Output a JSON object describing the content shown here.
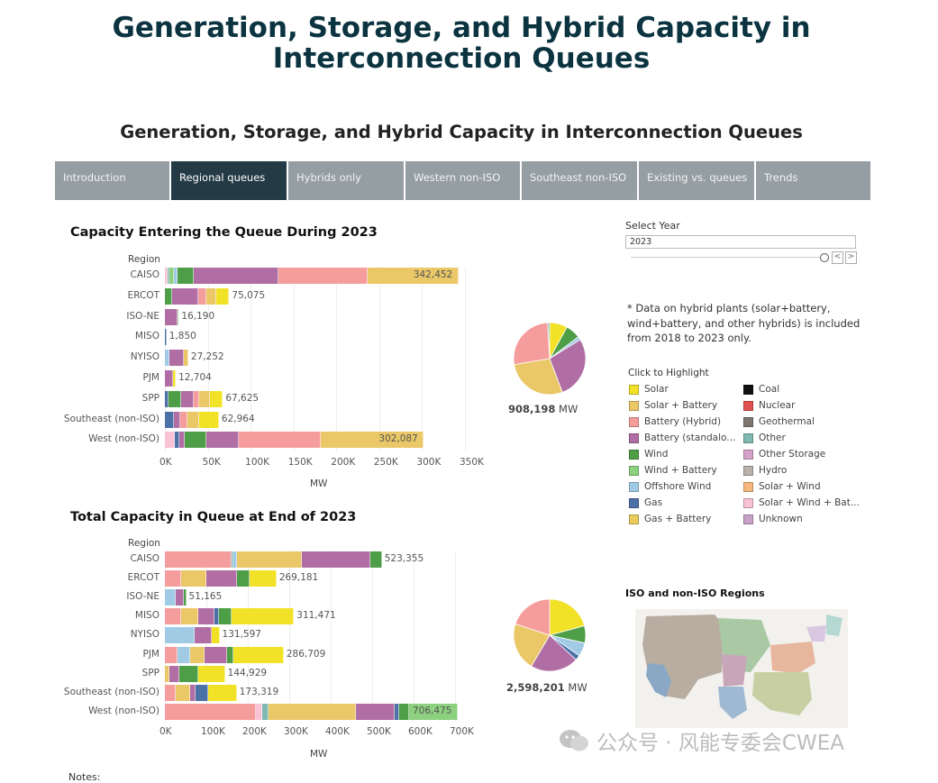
{
  "page": {
    "main_title_line1": "Generation, Storage, and Hybrid Capacity in",
    "main_title_line2": "Interconnection Queues",
    "subtitle": "Generation, Storage, and Hybrid Capacity in Interconnection Queues",
    "notes_label": "Notes:"
  },
  "tabs": [
    {
      "label": "Introduction",
      "active": false
    },
    {
      "label": "Regional queues",
      "active": true
    },
    {
      "label": "Hybrids only",
      "active": false
    },
    {
      "label": "Western non-ISO",
      "active": false
    },
    {
      "label": "Southeast non-ISO",
      "active": false
    },
    {
      "label": "Existing vs. queues",
      "active": false
    },
    {
      "label": "Trends",
      "active": false
    }
  ],
  "controls": {
    "select_year_label": "Select Year",
    "select_year_value": "2023",
    "prev_glyph": "<",
    "next_glyph": ">"
  },
  "note": "* Data on hybrid plants (solar+battery, wind+battery, and other hybrids) is included from 2018 to 2023 only.",
  "legend": {
    "title": "Click to Highlight",
    "items": [
      {
        "name": "Solar",
        "color": "#f1e227"
      },
      {
        "name": "Solar + Battery",
        "color": "#eac868"
      },
      {
        "name": "Battery (Hybrid)",
        "color": "#f59d9c"
      },
      {
        "name": "Battery (standalo...",
        "color": "#b06ea4"
      },
      {
        "name": "Wind",
        "color": "#4e9e48"
      },
      {
        "name": "Wind + Battery",
        "color": "#8dd07f"
      },
      {
        "name": "Offshore Wind",
        "color": "#a1cbe5"
      },
      {
        "name": "Gas",
        "color": "#4c71a6"
      },
      {
        "name": "Gas + Battery",
        "color": "#e9cb5e"
      },
      {
        "name": "Coal",
        "color": "#111111"
      },
      {
        "name": "Nuclear",
        "color": "#e0504f"
      },
      {
        "name": "Geothermal",
        "color": "#7f7672"
      },
      {
        "name": "Other",
        "color": "#7fb9b1"
      },
      {
        "name": "Other Storage",
        "color": "#d6a2ca"
      },
      {
        "name": "Hydro",
        "color": "#b9b1ab"
      },
      {
        "name": "Solar + Wind",
        "color": "#f5b77c"
      },
      {
        "name": "Solar + Wind + Bat...",
        "color": "#f9c3d5"
      },
      {
        "name": "Unknown",
        "color": "#c9a0c6"
      }
    ]
  },
  "pie1": {
    "total_value": "908,198",
    "unit": "MW"
  },
  "pie2": {
    "total_value": "2,598,201",
    "unit": "MW"
  },
  "map": {
    "title": "ISO and non-ISO Regions"
  },
  "watermark": "公众号 · 风能专委会CWEA",
  "chart_data": [
    {
      "type": "bar",
      "orientation": "horizontal-stacked",
      "title": "Capacity Entering the Queue During 2023",
      "category_axis_label": "Region",
      "xlabel": "MW",
      "xlim": [
        0,
        350000
      ],
      "ticks": [
        "0K",
        "50K",
        "100K",
        "150K",
        "200K",
        "250K",
        "300K",
        "350K"
      ],
      "categories": [
        "CAISO",
        "ERCOT",
        "ISO-NE",
        "MISO",
        "NYISO",
        "PJM",
        "SPP",
        "Southeast (non-ISO)",
        "West (non-ISO)"
      ],
      "totals": [
        342452,
        75075,
        16190,
        1850,
        27252,
        12704,
        67625,
        62964,
        302087
      ],
      "total_labels": [
        "342,452",
        "75,075",
        "16,190",
        "1,850",
        "27,252",
        "12,704",
        "67,625",
        "62,964",
        "302,087"
      ],
      "segments": [
        [
          [
            "Solar + Wind + Bat...",
            3000
          ],
          [
            "Other",
            2000
          ],
          [
            "Wind + Battery",
            6000
          ],
          [
            "Offshore Wind",
            4000
          ],
          [
            "Wind",
            19000
          ],
          [
            "Battery (standalo...",
            99000
          ],
          [
            "Battery (Hybrid)",
            104000
          ],
          [
            "Solar + Battery",
            105452
          ]
        ],
        [
          [
            "Wind",
            8000
          ],
          [
            "Battery (standalo...",
            31000
          ],
          [
            "Battery (Hybrid)",
            9000
          ],
          [
            "Solar + Battery",
            12000
          ],
          [
            "Solar",
            15075
          ]
        ],
        [
          [
            "Battery (standalo...",
            14190
          ],
          [
            "Wind",
            2000
          ]
        ],
        [
          [
            "Gas",
            1850
          ]
        ],
        [
          [
            "Offshore Wind",
            5000
          ],
          [
            "Battery (standalo...",
            17252
          ],
          [
            "Solar + Battery",
            5000
          ]
        ],
        [
          [
            "Battery (standalo...",
            9000
          ],
          [
            "Solar",
            3704
          ]
        ],
        [
          [
            "Gas",
            4000
          ],
          [
            "Wind",
            15000
          ],
          [
            "Battery (standalo...",
            15000
          ],
          [
            "Battery (Hybrid)",
            6000
          ],
          [
            "Solar + Battery",
            13000
          ],
          [
            "Solar",
            14625
          ]
        ],
        [
          [
            "Gas",
            10000
          ],
          [
            "Battery (standalo...",
            8000
          ],
          [
            "Battery (Hybrid)",
            8000
          ],
          [
            "Solar + Battery",
            14000
          ],
          [
            "Solar",
            22964
          ]
        ],
        [
          [
            "Solar + Wind + Bat...",
            12000
          ],
          [
            "Gas",
            5000
          ],
          [
            "Battery (standalo...",
            6000
          ],
          [
            "Wind",
            25000
          ],
          [
            "Battery (standalo...",
            38000
          ],
          [
            "Battery (Hybrid)",
            96000
          ],
          [
            "Solar + Battery",
            120087
          ]
        ]
      ]
    },
    {
      "type": "pie",
      "title": "",
      "total": 908198,
      "unit": "MW",
      "slices": [
        [
          "Solar",
          73000
        ],
        [
          "Wind",
          60000
        ],
        [
          "Offshore Wind",
          14000
        ],
        [
          "Battery (standalo...",
          255000
        ],
        [
          "Solar + Battery",
          255000
        ],
        [
          "Battery (Hybrid)",
          243000
        ],
        [
          "Other",
          8198
        ]
      ]
    },
    {
      "type": "bar",
      "orientation": "horizontal-stacked",
      "title": "Total Capacity in Queue at End of 2023",
      "category_axis_label": "Region",
      "xlabel": "MW",
      "xlim": [
        0,
        700000
      ],
      "ticks": [
        "0K",
        "100K",
        "200K",
        "300K",
        "400K",
        "500K",
        "600K",
        "700K"
      ],
      "categories": [
        "CAISO",
        "ERCOT",
        "ISO-NE",
        "MISO",
        "NYISO",
        "PJM",
        "SPP",
        "Southeast (non-ISO)",
        "West (non-ISO)"
      ],
      "totals": [
        523355,
        269181,
        51165,
        311471,
        131597,
        286709,
        144929,
        173319,
        706475
      ],
      "total_labels": [
        "523,355",
        "269,181",
        "51,165",
        "311,471",
        "131,597",
        "286,709",
        "144,929",
        "173,319",
        "706,475"
      ],
      "segments": [
        [
          [
            "Battery (Hybrid)",
            160000
          ],
          [
            "Other",
            5000
          ],
          [
            "Offshore Wind",
            10000
          ],
          [
            "Solar + Battery",
            155000
          ],
          [
            "Battery (standalo...",
            165000
          ],
          [
            "Wind",
            28355
          ]
        ],
        [
          [
            "Battery (Hybrid)",
            40000
          ],
          [
            "Solar + Battery",
            60000
          ],
          [
            "Battery (standalo...",
            75000
          ],
          [
            "Wind",
            30000
          ],
          [
            "Solar",
            64181
          ]
        ],
        [
          [
            "Offshore Wind",
            25000
          ],
          [
            "Battery (standalo...",
            20000
          ],
          [
            "Wind",
            6165
          ]
        ],
        [
          [
            "Battery (Hybrid)",
            40000
          ],
          [
            "Solar + Battery",
            40000
          ],
          [
            "Battery (standalo...",
            40000
          ],
          [
            "Gas",
            10000
          ],
          [
            "Wind",
            30000
          ],
          [
            "Solar",
            151471
          ]
        ],
        [
          [
            "Offshore Wind",
            72000
          ],
          [
            "Battery (standalo...",
            42000
          ],
          [
            "Solar",
            17597
          ]
        ],
        [
          [
            "Battery (Hybrid)",
            30000
          ],
          [
            "Offshore Wind",
            30000
          ],
          [
            "Solar + Battery",
            35000
          ],
          [
            "Battery (standalo...",
            55000
          ],
          [
            "Wind",
            15000
          ],
          [
            "Solar",
            121709
          ]
        ],
        [
          [
            "Solar + Battery",
            10000
          ],
          [
            "Battery (standalo...",
            25000
          ],
          [
            "Wind",
            45000
          ],
          [
            "Solar",
            64929
          ]
        ],
        [
          [
            "Battery (Hybrid)",
            25000
          ],
          [
            "Solar + Battery",
            35000
          ],
          [
            "Battery (standalo...",
            15000
          ],
          [
            "Gas",
            30000
          ],
          [
            "Solar",
            68319
          ]
        ],
        [
          [
            "Battery (Hybrid)",
            220000
          ],
          [
            "Solar + Wind + Bat...",
            15000
          ],
          [
            "Other",
            15000
          ],
          [
            "Solar + Battery",
            210000
          ],
          [
            "Battery (standalo...",
            95000
          ],
          [
            "Gas",
            10000
          ],
          [
            "Wind",
            25000
          ],
          [
            "Wind + Battery",
            116475
          ]
        ]
      ]
    },
    {
      "type": "pie",
      "title": "",
      "total": 2598201,
      "unit": "MW",
      "slices": [
        [
          "Solar",
          540000
        ],
        [
          "Wind",
          200000
        ],
        [
          "Offshore Wind",
          160000
        ],
        [
          "Gas",
          60000
        ],
        [
          "Battery (standalo...",
          560000
        ],
        [
          "Solar + Battery",
          560000
        ],
        [
          "Battery (Hybrid)",
          518201
        ]
      ]
    }
  ]
}
